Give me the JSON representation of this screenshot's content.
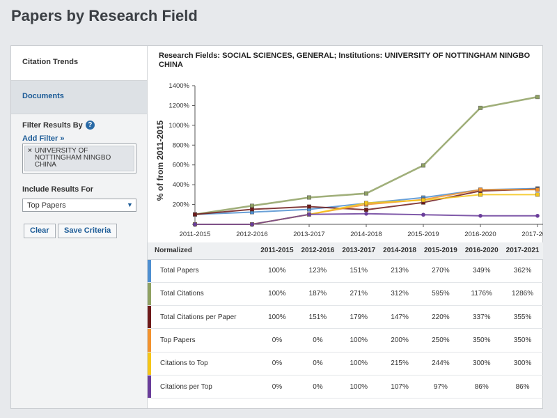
{
  "page": {
    "title": "Papers by Research Field"
  },
  "sidebar": {
    "citation_trends": "Citation Trends",
    "documents": "Documents",
    "filter_heading": "Filter Results By",
    "help_glyph": "?",
    "add_filter": "Add Filter »",
    "filter_chip": {
      "remove": "×",
      "label": "UNIVERSITY OF NOTTINGHAM NINGBO CHINA"
    },
    "include_heading": "Include Results For",
    "include_value": "Top Papers",
    "clear_label": "Clear",
    "save_label": "Save Criteria"
  },
  "main": {
    "header": "Research Fields: SOCIAL SCIENCES, GENERAL; Institutions: UNIVERSITY OF NOTTINGHAM NINGBO CHINA"
  },
  "chart_data": {
    "type": "line",
    "ylabel": "% of from 2011-2015",
    "xlabel": "",
    "categories": [
      "2011-2015",
      "2012-2016",
      "2013-2017",
      "2014-2018",
      "2015-2019",
      "2016-2020",
      "2017-2021"
    ],
    "yticks": [
      "",
      "200%",
      "400%",
      "600%",
      "800%",
      "1000%",
      "1200%",
      "1400%"
    ],
    "ylim": [
      0,
      1400
    ],
    "grid": false,
    "series": [
      {
        "name": "Total Papers",
        "color": "#4f8fd0",
        "values": [
          100,
          123,
          151,
          213,
          270,
          349,
          362
        ]
      },
      {
        "name": "Total Citations",
        "color": "#8fa163",
        "values": [
          100,
          187,
          271,
          312,
          595,
          1176,
          1286
        ]
      },
      {
        "name": "Total Citations per Paper",
        "color": "#6e1a1a",
        "values": [
          100,
          151,
          179,
          147,
          220,
          337,
          355
        ]
      },
      {
        "name": "Top Papers",
        "color": "#f2922e",
        "values": [
          0,
          0,
          100,
          200,
          250,
          350,
          350
        ]
      },
      {
        "name": "Citations to Top",
        "color": "#f5c518",
        "values": [
          0,
          0,
          100,
          215,
          244,
          300,
          300
        ]
      },
      {
        "name": "Citations per Top",
        "color": "#6a3d9a",
        "values": [
          0,
          0,
          100,
          107,
          97,
          86,
          86
        ]
      }
    ]
  },
  "table": {
    "header_first": "Normalized",
    "rows": [
      {
        "label": "Total Papers",
        "cells": [
          "100%",
          "123%",
          "151%",
          "213%",
          "270%",
          "349%",
          "362%"
        ]
      },
      {
        "label": "Total Citations",
        "cells": [
          "100%",
          "187%",
          "271%",
          "312%",
          "595%",
          "1176%",
          "1286%"
        ]
      },
      {
        "label": "Total Citations per Paper",
        "cells": [
          "100%",
          "151%",
          "179%",
          "147%",
          "220%",
          "337%",
          "355%"
        ]
      },
      {
        "label": "Top Papers",
        "cells": [
          "0%",
          "0%",
          "100%",
          "200%",
          "250%",
          "350%",
          "350%"
        ]
      },
      {
        "label": "Citations to Top",
        "cells": [
          "0%",
          "0%",
          "100%",
          "215%",
          "244%",
          "300%",
          "300%"
        ]
      },
      {
        "label": "Citations per Top",
        "cells": [
          "0%",
          "0%",
          "100%",
          "107%",
          "97%",
          "86%",
          "86%"
        ]
      }
    ]
  }
}
